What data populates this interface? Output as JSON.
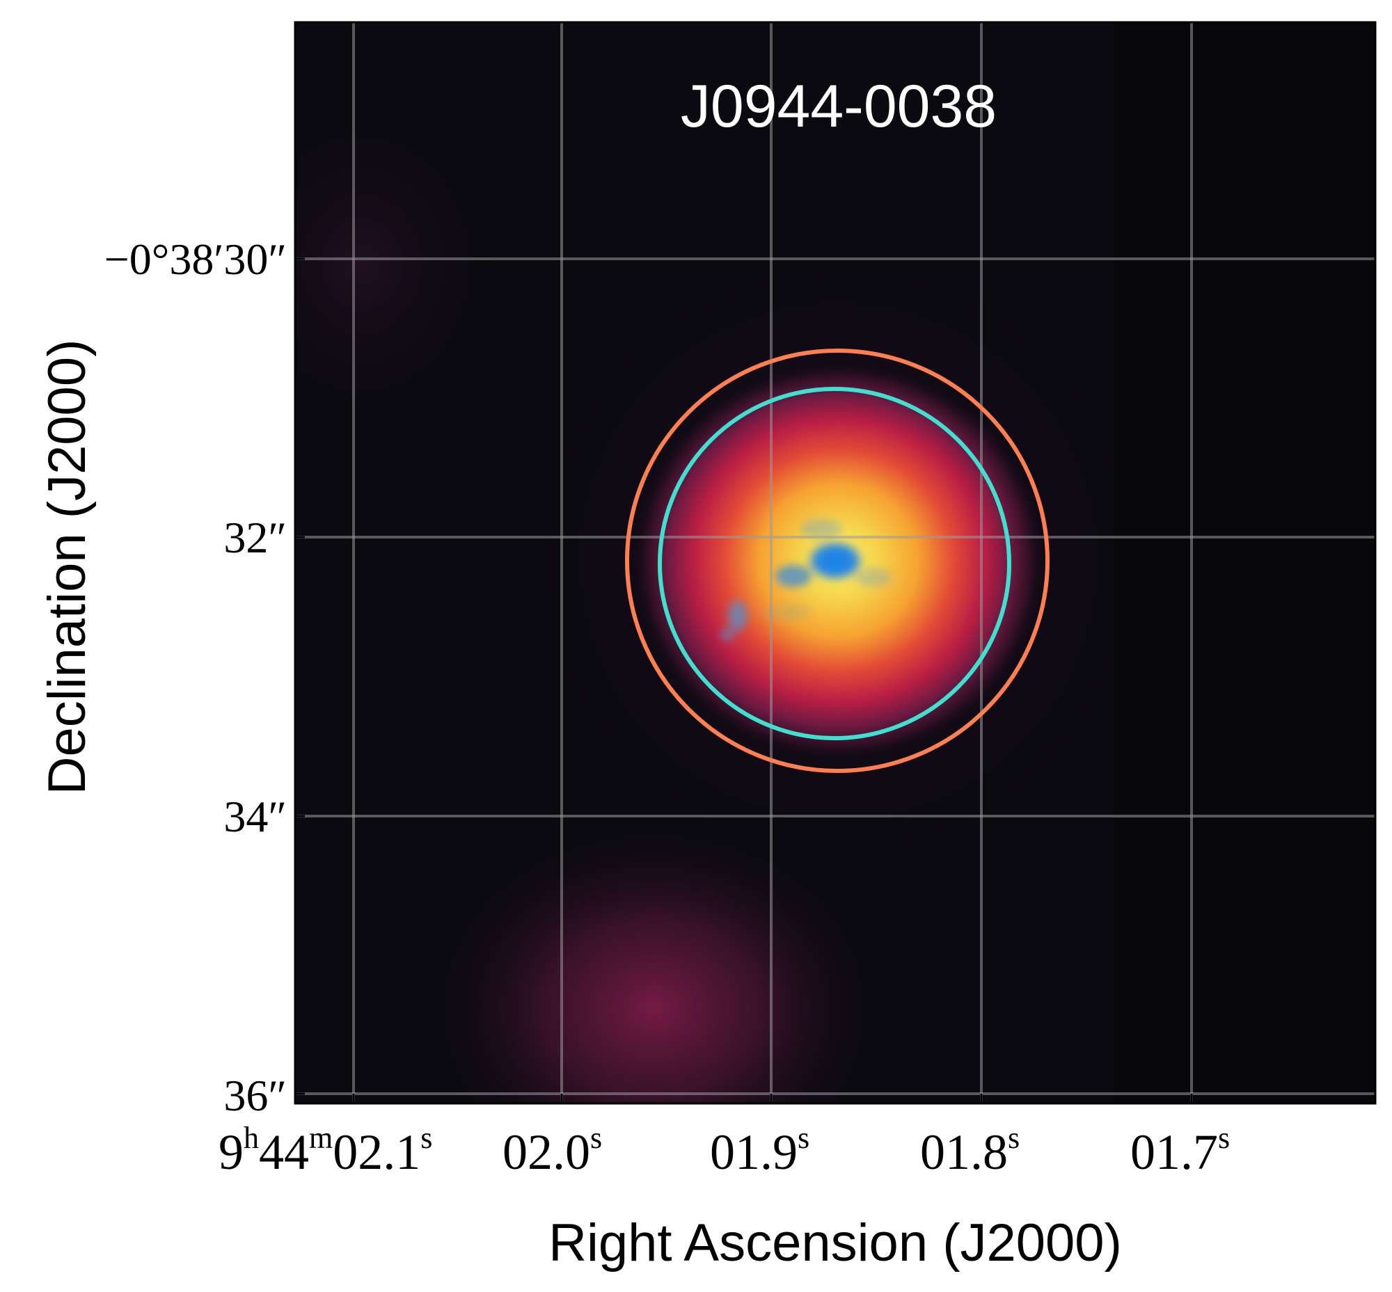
{
  "figure": {
    "title": "J0944-0038",
    "xlabel": "Right Ascension (J2000)",
    "ylabel": "Declination (J2000)",
    "x_ticks": [
      {
        "value": "02.1s",
        "label_main": "9",
        "label_sup1": "h",
        "label_mid": "44",
        "label_sup2": "m",
        "label_tail": "02.1",
        "label_sup3": "s"
      },
      {
        "value": "02.0s",
        "label_tail": "02.0",
        "label_sup3": "s"
      },
      {
        "value": "01.9s",
        "label_tail": "01.9",
        "label_sup3": "s"
      },
      {
        "value": "01.8s",
        "label_tail": "01.8",
        "label_sup3": "s"
      },
      {
        "value": "01.7s",
        "label_tail": "01.7",
        "label_sup3": "s"
      }
    ],
    "y_ticks": [
      {
        "value": "30",
        "label": "−0°38′30″"
      },
      {
        "value": "32",
        "label": "32″"
      },
      {
        "value": "34",
        "label": "34″"
      },
      {
        "value": "36",
        "label": "36″"
      }
    ],
    "grid": true,
    "apertures": [
      {
        "name": "outer-aperture",
        "color": "#ff7f50"
      },
      {
        "name": "inner-aperture",
        "color": "#40e0d0"
      }
    ],
    "colormap_hint": "black-magenta-red-orange-yellow with blue core"
  }
}
